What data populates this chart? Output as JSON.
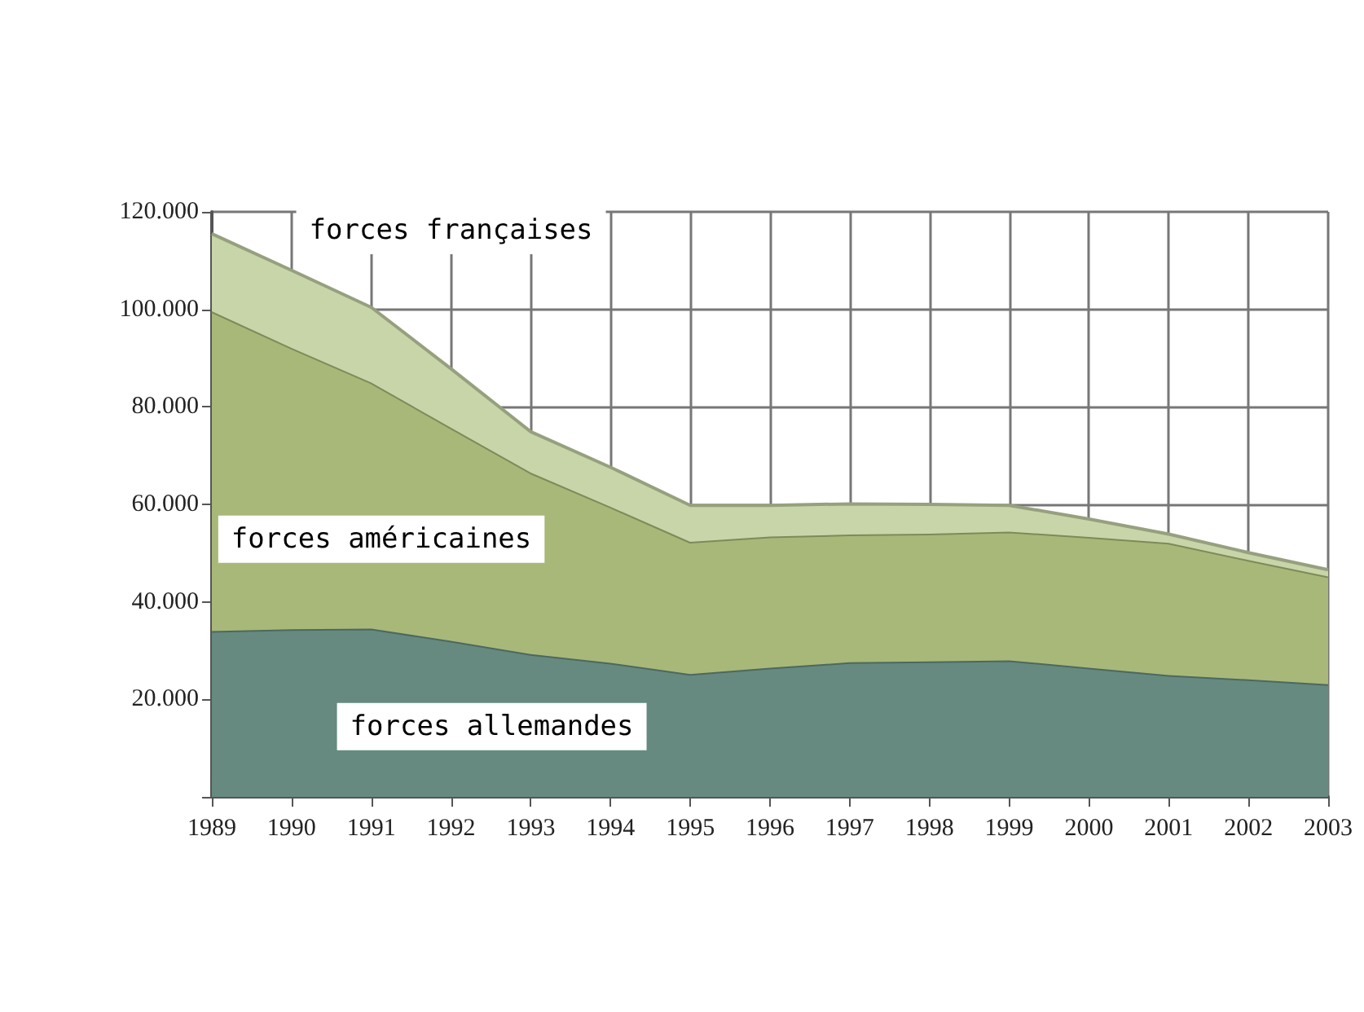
{
  "chart_data": {
    "type": "area",
    "stacked": true,
    "grid": true,
    "legend": false,
    "categories": [
      "1989",
      "1990",
      "1991",
      "1992",
      "1993",
      "1994",
      "1995",
      "1996",
      "1997",
      "1998",
      "1999",
      "2000",
      "2001",
      "2002",
      "2003"
    ],
    "ylim": [
      0,
      120000
    ],
    "yticks": [
      {
        "value": 0,
        "label": null
      },
      {
        "value": 20000,
        "label": "20.000"
      },
      {
        "value": 40000,
        "label": "40.000"
      },
      {
        "value": 60000,
        "label": "60.000"
      },
      {
        "value": 80000,
        "label": "80.000"
      },
      {
        "value": 100000,
        "label": "100.000"
      },
      {
        "value": 120000,
        "label": "120.000"
      }
    ],
    "series": [
      {
        "name": "forces allemandes",
        "color": "#668a80",
        "values": [
          34000,
          34400,
          34500,
          32000,
          29300,
          27500,
          25200,
          26500,
          27600,
          27800,
          28000,
          26500,
          25000,
          24100,
          23100
        ]
      },
      {
        "name": "forces américaines",
        "color": "#a8b878",
        "values": [
          65600,
          57700,
          50500,
          43700,
          37200,
          32000,
          27100,
          26900,
          26200,
          26200,
          26400,
          26800,
          27100,
          24500,
          22100
        ]
      },
      {
        "name": "forces françaises",
        "color": "#c8d5a8",
        "values": [
          15900,
          15900,
          15400,
          12100,
          8400,
          8100,
          7500,
          6400,
          6300,
          6000,
          5400,
          3700,
          1800,
          1500,
          1400
        ]
      }
    ]
  }
}
